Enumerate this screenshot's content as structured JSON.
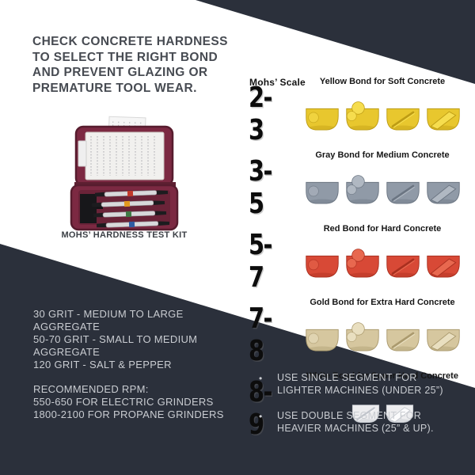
{
  "colors": {
    "dark_panel": "#2b303b",
    "light_text": "#c9ccd1",
    "headline_text": "#474b52"
  },
  "headline": "CHECK CONCRETE HARDNESS\nTO SELECT THE RIGHT BOND\nAND PREVENT GLAZING OR\nPREMATURE TOOL WEAR.",
  "kit_caption": "MOHS’ HARDNESS TEST KIT",
  "mohs": {
    "header": "Mohs’ Scale",
    "rows": [
      {
        "range": "2-3",
        "label": "Yellow Bond for Soft Concrete",
        "base": "#e8c72e",
        "light": "#f6dd4e",
        "dark": "#bd9c14",
        "segments": [
          "button",
          "knob",
          "groove",
          "bar"
        ]
      },
      {
        "range": "3-5",
        "label": "Gray Bond for Medium Concrete",
        "base": "#909aa7",
        "light": "#b0b8c2",
        "dark": "#6b7582",
        "segments": [
          "button",
          "knob",
          "groove",
          "bar"
        ]
      },
      {
        "range": "5-7",
        "label": "Red Bond for Hard Concrete",
        "base": "#d84936",
        "light": "#e8684f",
        "dark": "#a92f1f",
        "segments": [
          "button",
          "knob",
          "groove",
          "bar"
        ]
      },
      {
        "range": "7-8",
        "label": "Gold Bond for Extra Hard Concrete",
        "base": "#d6c79f",
        "light": "#e9dfc0",
        "dark": "#ab9a6e",
        "segments": [
          "button",
          "knob",
          "groove",
          "bar"
        ]
      },
      {
        "range": "8-9",
        "label": "White Bond for Super Hard Concrete",
        "base": "#ededef",
        "light": "#fbfbfc",
        "dark": "#bfc3ca",
        "segments": [
          "groove",
          "bar"
        ],
        "small": true
      }
    ]
  },
  "grit_info": "30 GRIT - MEDIUM TO LARGE\nAGGREGATE\n50-70 GRIT - SMALL TO MEDIUM\nAGGREGATE\n120 GRIT - SALT & PEPPER",
  "rpm_info": "RECOMMENDED RPM:\n550-650 FOR ELECTRIC GRINDERS\n1800-2100 FOR PROPANE GRINDERS",
  "bullets": {
    "marker": "•",
    "items": [
      {
        "text": "USE SINGLE SEGMENT FOR\nLIGHTER MACHINES (UNDER 25”)"
      },
      {
        "text": "USE DOUBLE SEGMENT FOR\nHEAVIER MACHINES (25” & UP)."
      }
    ]
  }
}
